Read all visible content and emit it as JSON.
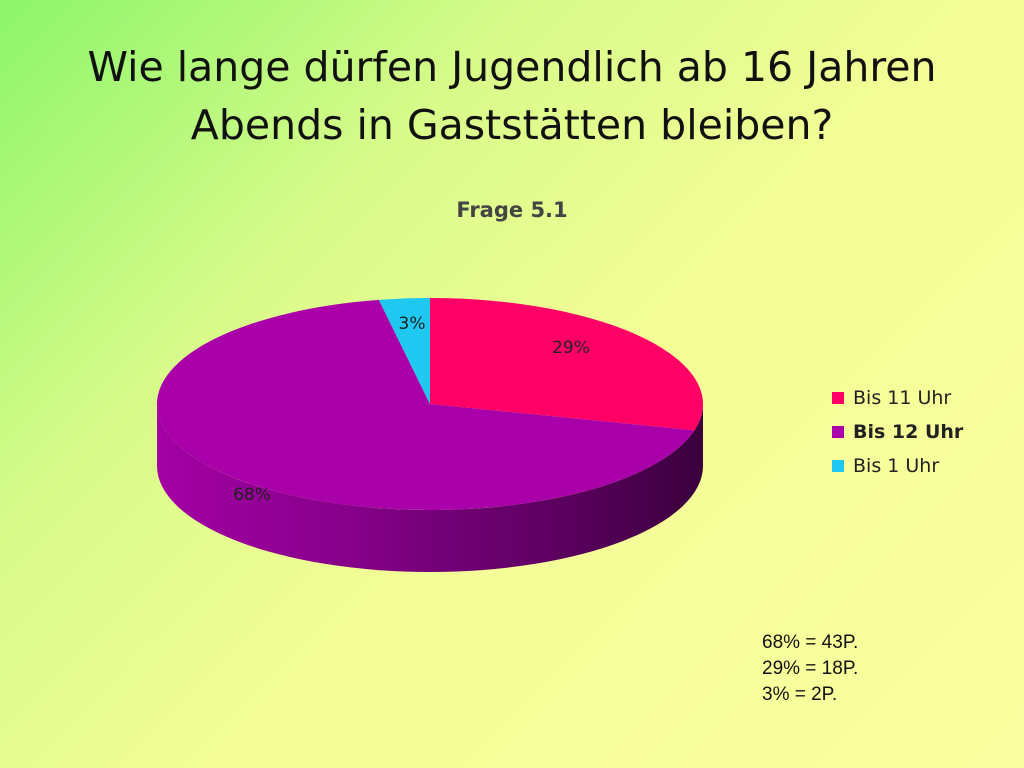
{
  "slide": {
    "title_line1": "Wie lange dürfen Jugendlich ab 16 Jahren",
    "title_line2": "Abends in Gaststätten bleiben?"
  },
  "chart_data": {
    "type": "pie",
    "title": "Frage  5.1",
    "slices": [
      {
        "label": "Bis 11 Uhr",
        "value": 29,
        "value_label": "29%",
        "color": "#ff0066"
      },
      {
        "label": "Bis 12 Uhr",
        "value": 68,
        "value_label": "68%",
        "color": "#aa00aa"
      },
      {
        "label": "Bis 1 Uhr",
        "value": 3,
        "value_label": "3%",
        "color": "#1ec8f0"
      }
    ],
    "legend_position": "right",
    "three_d": true
  },
  "notes": [
    "68% = 43P.",
    "29% = 18P.",
    "3% = 2P."
  ]
}
